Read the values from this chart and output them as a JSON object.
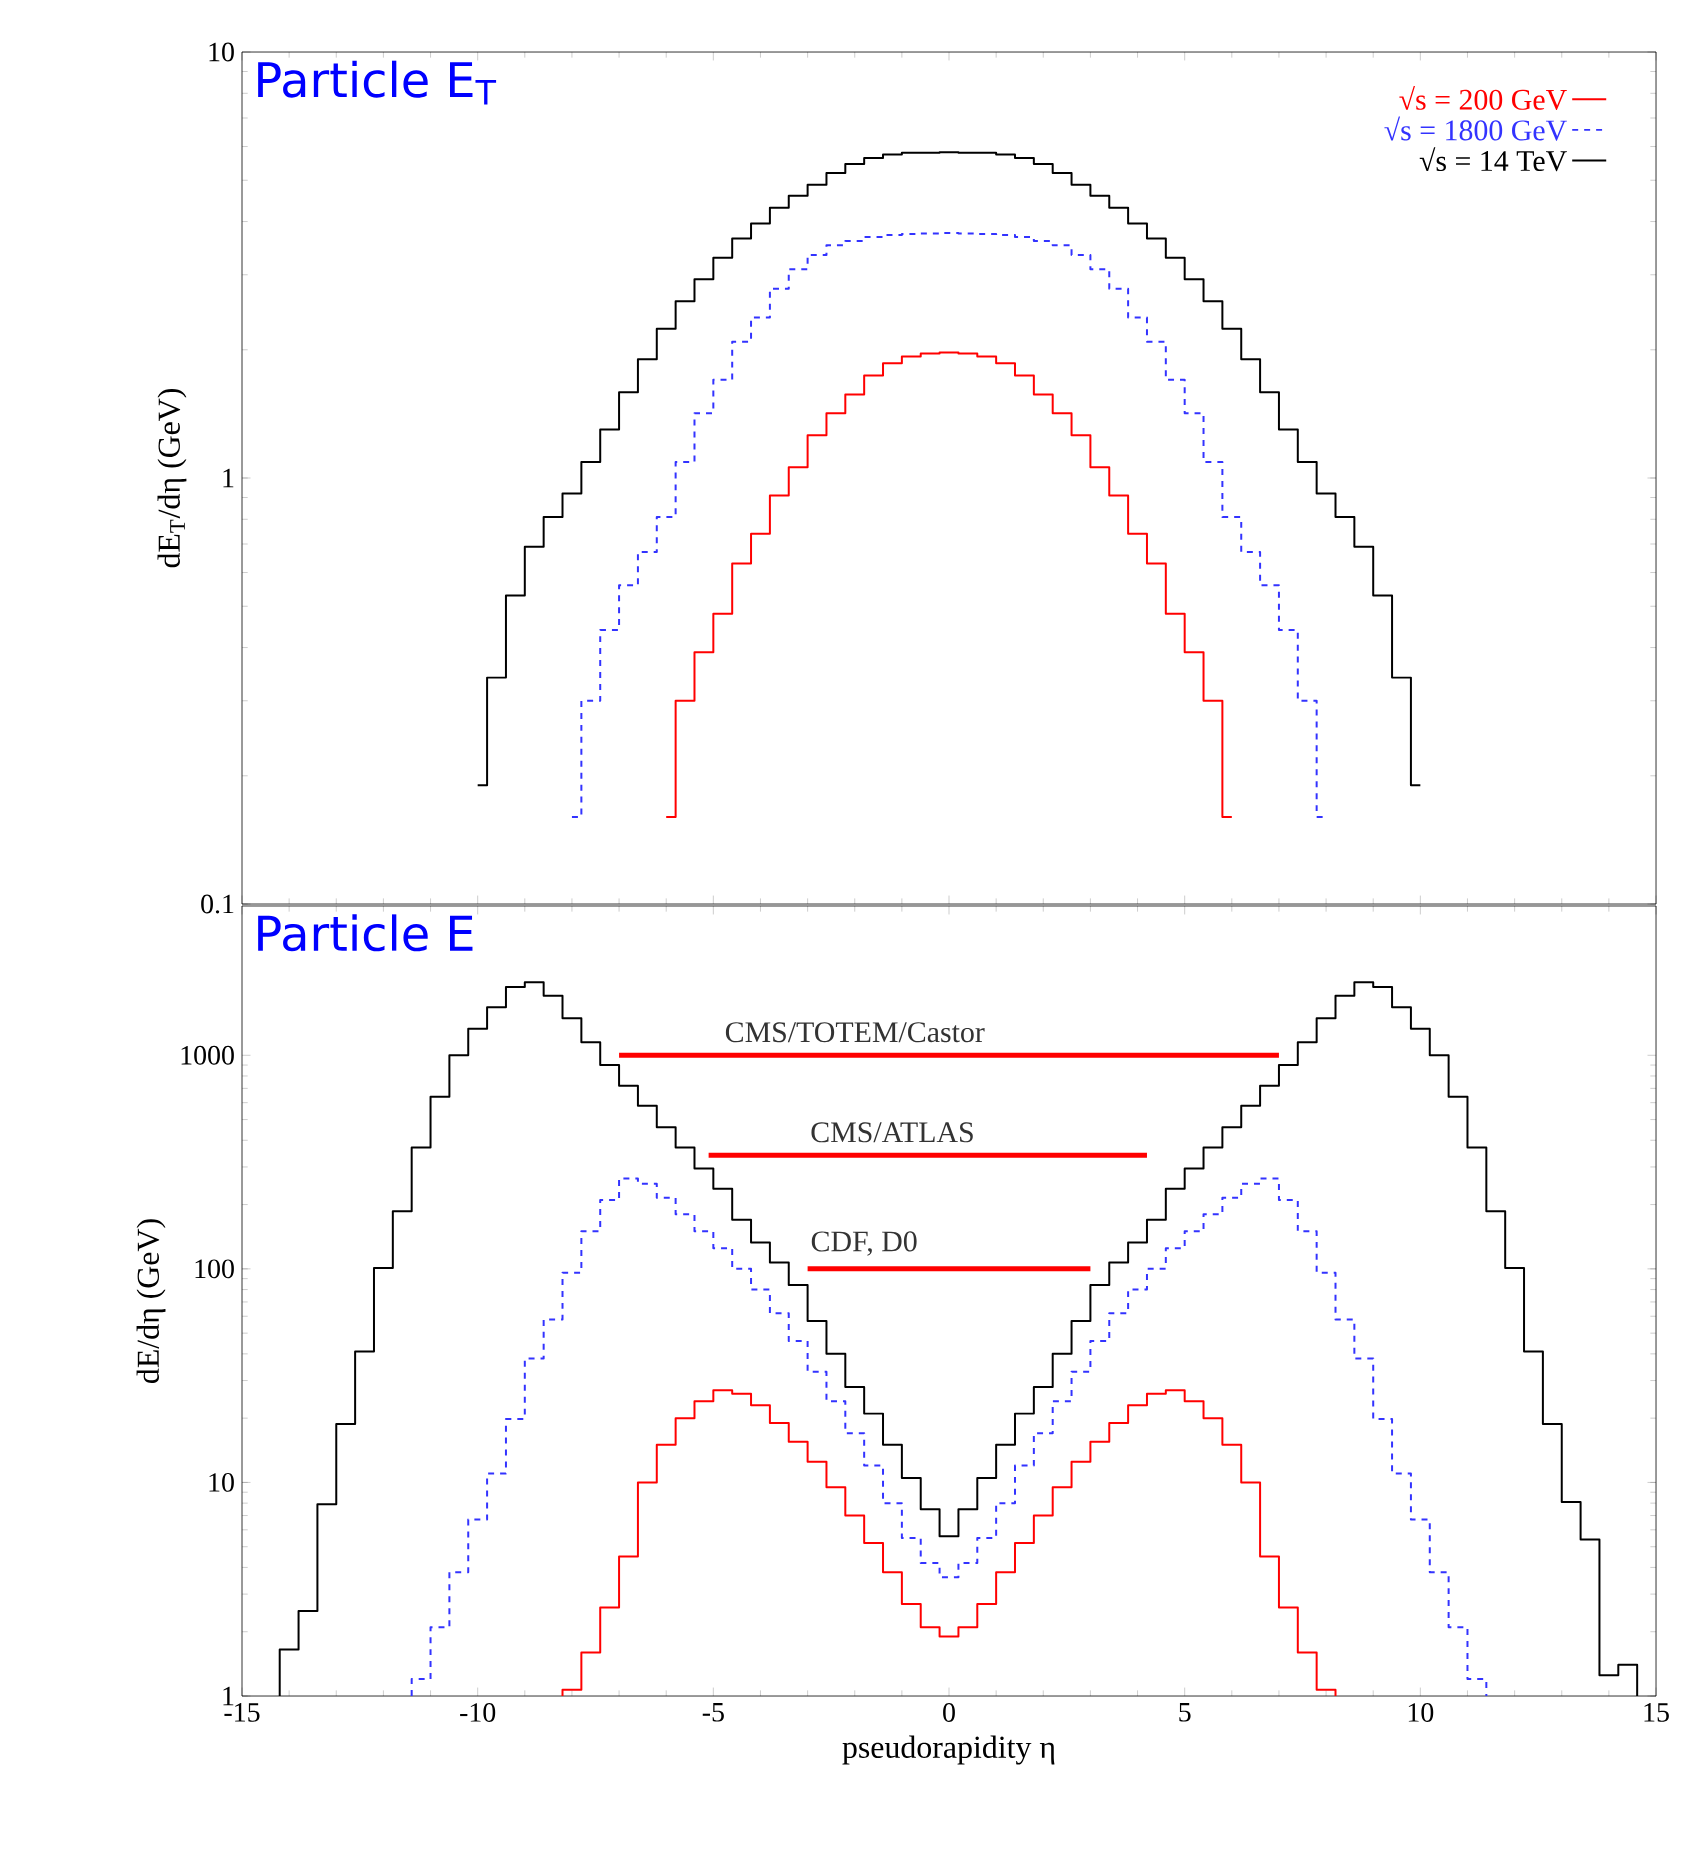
{
  "chart_data": [
    {
      "type": "step",
      "title": "Particle E$_{T}$",
      "ylabel": "dE$_{T}$/dη    (GeV)",
      "log": "y",
      "legend": "top right",
      "tick_labels": "y",
      "xlim": [
        -15,
        15
      ],
      "xticks": [
        -15,
        -10,
        -5,
        0,
        5,
        10,
        15
      ],
      "ylim": [
        0.1,
        10
      ],
      "yticks": [
        0.1,
        1,
        10
      ],
      "series": [
        {
          "name": "√s = 200 GeV",
          "color": "#ff0000",
          "line_style": "solid",
          "x": [
            -6,
            -5.6,
            -5.2,
            -4.8,
            -4.4,
            -4,
            -3.6,
            -3.2,
            -2.8,
            -2.4,
            -2,
            -1.6,
            -1.2,
            -0.8,
            -0.4,
            0,
            0.4,
            0.8,
            1.2,
            1.6,
            2,
            2.4,
            2.8,
            3.2,
            3.6,
            4,
            4.4,
            4.8,
            5.2,
            5.6,
            6
          ],
          "values": [
            0.16,
            0.3,
            0.39,
            0.48,
            0.63,
            0.74,
            0.91,
            1.06,
            1.26,
            1.42,
            1.57,
            1.74,
            1.86,
            1.93,
            1.96,
            1.97,
            1.96,
            1.93,
            1.86,
            1.74,
            1.57,
            1.42,
            1.26,
            1.06,
            0.91,
            0.74,
            0.63,
            0.48,
            0.39,
            0.3,
            0.16
          ]
        },
        {
          "name": "√s = 1800 GeV",
          "color": "#3333ff",
          "line_style": "dashed",
          "x": [
            -8,
            -7.6,
            -7.2,
            -6.8,
            -6.4,
            -6,
            -5.6,
            -5.2,
            -4.8,
            -4.4,
            -4,
            -3.6,
            -3.2,
            -2.8,
            -2.4,
            -2,
            -1.6,
            -1.2,
            -0.8,
            -0.4,
            0,
            0.4,
            0.8,
            1.2,
            1.6,
            2,
            2.4,
            2.8,
            3.2,
            3.6,
            4,
            4.4,
            4.8,
            5.2,
            5.6,
            6,
            6.4,
            6.8,
            7.2,
            7.6,
            8
          ],
          "values": [
            0.16,
            0.3,
            0.44,
            0.56,
            0.67,
            0.81,
            1.09,
            1.42,
            1.7,
            2.09,
            2.38,
            2.78,
            3.09,
            3.34,
            3.52,
            3.6,
            3.68,
            3.72,
            3.74,
            3.75,
            3.76,
            3.75,
            3.74,
            3.72,
            3.68,
            3.6,
            3.52,
            3.34,
            3.09,
            2.78,
            2.38,
            2.09,
            1.7,
            1.42,
            1.09,
            0.81,
            0.67,
            0.56,
            0.44,
            0.3,
            0.16
          ]
        },
        {
          "name": "√s = 14 TeV",
          "color": "#000000",
          "line_style": "solid",
          "x": [
            -10,
            -9.6,
            -9.2,
            -8.8,
            -8.4,
            -8,
            -7.6,
            -7.2,
            -6.8,
            -6.4,
            -6,
            -5.6,
            -5.2,
            -4.8,
            -4.4,
            -4,
            -3.6,
            -3.2,
            -2.8,
            -2.4,
            -2,
            -1.6,
            -1.2,
            -0.8,
            -0.4,
            0,
            0.4,
            0.8,
            1.2,
            1.6,
            2,
            2.4,
            2.8,
            3.2,
            3.6,
            4,
            4.4,
            4.8,
            5.2,
            5.6,
            6,
            6.4,
            6.8,
            7.2,
            7.6,
            8,
            8.4,
            8.8,
            9.2,
            9.6,
            10
          ],
          "values": [
            0.19,
            0.34,
            0.53,
            0.69,
            0.81,
            0.92,
            1.09,
            1.3,
            1.59,
            1.9,
            2.24,
            2.6,
            2.93,
            3.29,
            3.65,
            3.96,
            4.31,
            4.6,
            4.88,
            5.2,
            5.46,
            5.64,
            5.75,
            5.8,
            5.8,
            5.82,
            5.8,
            5.8,
            5.75,
            5.64,
            5.46,
            5.2,
            4.88,
            4.6,
            4.31,
            3.96,
            3.65,
            3.29,
            2.93,
            2.6,
            2.24,
            1.9,
            1.59,
            1.3,
            1.09,
            0.92,
            0.81,
            0.69,
            0.53,
            0.34,
            0.19
          ]
        }
      ]
    },
    {
      "type": "histogram",
      "title": "Particle E",
      "xlabel": "pseudorapidity η",
      "ylabel": "dE/dη    (GeV)",
      "log": "y",
      "xlim": [
        -15,
        15
      ],
      "xticks": [
        -15,
        -10,
        -5,
        0,
        5,
        10,
        15
      ],
      "ylim": [
        1,
        5000
      ],
      "yticks": [
        1,
        10,
        100,
        1000
      ],
      "annotations": [
        {
          "text": "CMS/TOTEM/Castor",
          "x": -2,
          "y": 1000
        },
        {
          "text": "CMS/ATLAS",
          "x": -1.2,
          "y": 340
        },
        {
          "text": "CDF, D0",
          "x": -1.8,
          "y": 100
        }
      ],
      "series": [
        {
          "color": "#ff0000",
          "line_style": "solid",
          "bins": [
            -8.2,
            -7.8,
            -7.4,
            -7,
            -6.6,
            -6.2,
            -5.8,
            -5.4,
            -5,
            -4.6,
            -4.2,
            -3.8,
            -3.4,
            -3,
            -2.6,
            -2.2,
            -1.8,
            -1.4,
            -1,
            -0.6,
            -0.2,
            0.2,
            0.6,
            1,
            1.4,
            1.8,
            2.2,
            2.6,
            3,
            3.4,
            3.8,
            4.2,
            4.6,
            5,
            5.4,
            5.8,
            6.2,
            6.6,
            7,
            7.4,
            7.8,
            8.2
          ],
          "values": [
            1.07,
            1.6,
            2.6,
            4.5,
            10,
            15,
            20,
            24,
            27,
            26,
            23,
            19,
            15.5,
            12.5,
            9.5,
            7,
            5.2,
            3.8,
            2.7,
            2.1,
            1.9,
            2.1,
            2.7,
            3.8,
            5.2,
            7,
            9.5,
            12.5,
            15.5,
            19,
            23,
            26,
            27,
            24,
            20,
            15,
            10,
            4.5,
            2.6,
            1.6,
            1.07
          ]
        },
        {
          "color": "#3333ff",
          "line_style": "dashed",
          "bins": [
            -11.4,
            -11,
            -10.6,
            -10.2,
            -9.8,
            -9.4,
            -9,
            -8.6,
            -8.2,
            -7.8,
            -7.4,
            -7,
            -6.6,
            -6.2,
            -5.8,
            -5.4,
            -5,
            -4.6,
            -4.2,
            -3.8,
            -3.4,
            -3,
            -2.6,
            -2.2,
            -1.8,
            -1.4,
            -1,
            -0.6,
            -0.2,
            0.2,
            0.6,
            1,
            1.4,
            1.8,
            2.2,
            2.6,
            3,
            3.4,
            3.8,
            4.2,
            4.6,
            5,
            5.4,
            5.8,
            6.2,
            6.6,
            7,
            7.4,
            7.8,
            8.2,
            8.6,
            9,
            9.4,
            9.8,
            10.2,
            10.6,
            11,
            11.4
          ],
          "values": [
            1.2,
            2.1,
            3.8,
            6.7,
            11,
            19.8,
            38,
            58,
            96,
            150,
            210,
            265,
            250,
            215,
            180,
            150,
            125,
            100,
            80,
            62,
            46,
            33,
            24,
            17,
            12,
            8,
            5.5,
            4.2,
            3.6,
            4.2,
            5.5,
            8,
            12,
            17,
            24,
            33,
            46,
            62,
            80,
            100,
            125,
            150,
            180,
            215,
            250,
            265,
            210,
            150,
            96,
            58,
            38,
            19.8,
            11,
            6.7,
            3.8,
            2.1,
            1.2
          ]
        },
        {
          "color": "#000000",
          "line_style": "solid",
          "bins": [
            -14.2,
            -13.8,
            -13.4,
            -13,
            -12.6,
            -12.2,
            -11.8,
            -11.4,
            -11,
            -10.6,
            -10.2,
            -9.8,
            -9.4,
            -9,
            -8.6,
            -8.2,
            -7.8,
            -7.4,
            -7,
            -6.6,
            -6.2,
            -5.8,
            -5.4,
            -5,
            -4.6,
            -4.2,
            -3.8,
            -3.4,
            -3,
            -2.6,
            -2.2,
            -1.8,
            -1.4,
            -1,
            -0.6,
            -0.2,
            0.2,
            0.6,
            1,
            1.4,
            1.8,
            2.2,
            2.6,
            3,
            3.4,
            3.8,
            4.2,
            4.6,
            5,
            5.4,
            5.8,
            6.2,
            6.6,
            7,
            7.4,
            7.8,
            8.2,
            8.6,
            9,
            9.4,
            9.8,
            10.2,
            10.6,
            11,
            11.4,
            11.8,
            12.2,
            12.6,
            13,
            13.4,
            13.8,
            14.2,
            14.6
          ],
          "values": [
            1.65,
            2.5,
            7.9,
            18.8,
            41,
            101,
            186,
            370,
            640,
            1000,
            1330,
            1680,
            2090,
            2200,
            1900,
            1490,
            1150,
            900,
            720,
            580,
            460,
            370,
            295,
            237,
            170,
            133,
            107,
            84,
            57,
            40,
            28,
            21,
            15,
            10.5,
            7.5,
            5.6,
            7.5,
            10.5,
            15,
            21,
            28,
            40,
            57,
            84,
            107,
            133,
            170,
            237,
            295,
            370,
            460,
            580,
            720,
            900,
            1150,
            1490,
            1900,
            2200,
            2090,
            1680,
            1330,
            1000,
            640,
            370,
            186,
            101,
            41,
            18.8,
            8.1,
            5.4,
            1.25,
            1.4
          ]
        },
        {
          "type": "line",
          "color": "#ff0000",
          "x": [
            -7,
            7
          ],
          "values": [
            1000,
            1000
          ]
        },
        {
          "type": "line",
          "color": "#ff0000",
          "x": [
            -5.1,
            4.2
          ],
          "values": [
            340,
            340
          ]
        },
        {
          "type": "line",
          "color": "#ff0000",
          "x": [
            -3,
            3
          ],
          "values": [
            100,
            100
          ]
        }
      ]
    }
  ]
}
